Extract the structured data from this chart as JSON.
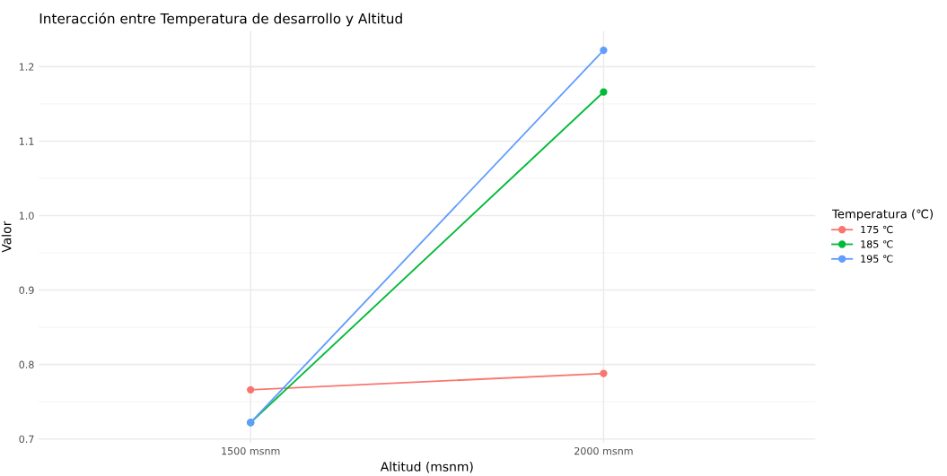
{
  "chart_data": {
    "type": "line",
    "title": "Interacción entre Temperatura de desarrollo y Altitud",
    "xlabel": "Altitud (msnm)",
    "ylabel": "Valor",
    "legend_title": "Temperatura (℃)",
    "categories": [
      "1500 msnm",
      "2000 msnm"
    ],
    "series": [
      {
        "name": "175 ℃",
        "color": "#f8766d",
        "values": [
          0.766,
          0.788
        ]
      },
      {
        "name": "185 ℃",
        "color": "#00ba38",
        "values": [
          0.722,
          1.166
        ]
      },
      {
        "name": "195 ℃",
        "color": "#619cff",
        "values": [
          0.722,
          1.222
        ]
      }
    ],
    "ylim": [
      0.695,
      1.248
    ],
    "yticks": [
      0.7,
      0.8,
      0.9,
      {
        "value": 1.0,
        "label": "1.0"
      },
      1.1,
      1.2
    ],
    "grid": true,
    "legend": "right",
    "marker": "circle",
    "line_style": "solid"
  }
}
